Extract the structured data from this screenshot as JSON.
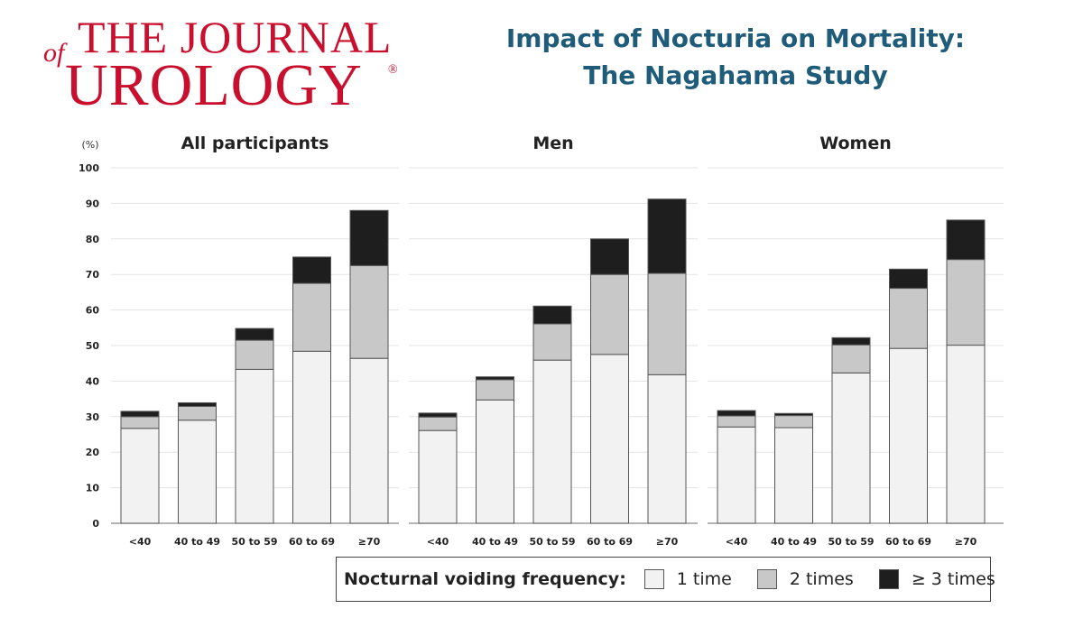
{
  "header": {
    "logo": {
      "line1": "THE JOURNAL",
      "of": "of",
      "line2": "UROLOGY",
      "reg": "®"
    },
    "title_line1": "Impact of Nocturia on Mortality:",
    "title_line2": "The Nagahama Study"
  },
  "colors": {
    "one": "#f2f2f2",
    "two": "#c8c8c8",
    "three": "#1e1e1e",
    "title": "#1f5c7a",
    "logo": "#c8102e"
  },
  "chart_data": {
    "type": "bar",
    "stacked": true,
    "y_unit": "(%)",
    "ylim": [
      0,
      100
    ],
    "yticks": [
      0,
      10,
      20,
      30,
      40,
      50,
      60,
      70,
      80,
      90,
      100
    ],
    "grid": true,
    "categories": [
      "<40",
      "40 to 49",
      "50 to 59",
      "60 to 69",
      "≥70"
    ],
    "legend": {
      "title": "Nocturnal voiding frequency:",
      "entries": [
        "1 time",
        "2 times",
        "≥ 3 times"
      ],
      "placement": "bottom"
    },
    "panels": [
      {
        "title": "All participants",
        "series": [
          {
            "name": "1 time",
            "values": [
              26.7,
              29,
              43.3,
              48.4,
              46.4
            ]
          },
          {
            "name": "2 times",
            "values": [
              3.3,
              3.9,
              8.2,
              19.1,
              26.1
            ]
          },
          {
            "name": "≥ 3 times",
            "values": [
              1.5,
              1.0,
              3.3,
              7.4,
              15.5
            ]
          }
        ]
      },
      {
        "title": "Men",
        "series": [
          {
            "name": "1 time",
            "values": [
              26.1,
              34.7,
              45.9,
              47.5,
              41.8
            ]
          },
          {
            "name": "2 times",
            "values": [
              3.8,
              5.7,
              10.2,
              22.5,
              28.5
            ]
          },
          {
            "name": "≥ 3 times",
            "values": [
              1.1,
              0.8,
              5.0,
              10.0,
              20.9
            ]
          }
        ]
      },
      {
        "title": "Women",
        "series": [
          {
            "name": "1 time",
            "values": [
              27.1,
              26.9,
              42.3,
              49.2,
              50.1
            ]
          },
          {
            "name": "2 times",
            "values": [
              3.1,
              3.4,
              7.9,
              16.9,
              24.1
            ]
          },
          {
            "name": "≥ 3 times",
            "values": [
              1.5,
              0.6,
              2.0,
              5.4,
              11.1
            ]
          }
        ]
      }
    ]
  }
}
